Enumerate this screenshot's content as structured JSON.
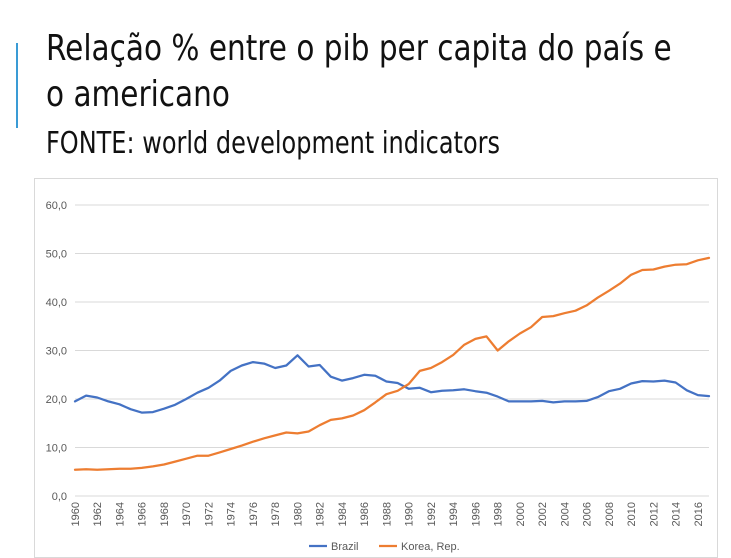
{
  "slide": {
    "title_line1": "Relação % entre o pib per capita do país e",
    "title_line2": "o americano",
    "subtitle": "FONTE: world development indicators"
  },
  "colors": {
    "brazil": "#4472c4",
    "korea": "#ed7d31",
    "grid": "#d9d9d9",
    "accent": "#3a9bd5"
  },
  "chart_data": {
    "type": "line",
    "title": "",
    "xlabel": "",
    "ylabel": "",
    "ylim": [
      0,
      60
    ],
    "yticks": [
      0,
      10,
      20,
      30,
      40,
      50,
      60
    ],
    "ytick_labels": [
      "0,0",
      "10,0",
      "20,0",
      "30,0",
      "40,0",
      "50,0",
      "60,0"
    ],
    "x": [
      1960,
      1961,
      1962,
      1963,
      1964,
      1965,
      1966,
      1967,
      1968,
      1969,
      1970,
      1971,
      1972,
      1973,
      1974,
      1975,
      1976,
      1977,
      1978,
      1979,
      1980,
      1981,
      1982,
      1983,
      1984,
      1985,
      1986,
      1987,
      1988,
      1989,
      1990,
      1991,
      1992,
      1993,
      1994,
      1995,
      1996,
      1997,
      1998,
      1999,
      2000,
      2001,
      2002,
      2003,
      2004,
      2005,
      2006,
      2007,
      2008,
      2009,
      2010,
      2011,
      2012,
      2013,
      2014,
      2015,
      2016,
      2017
    ],
    "xtick_labels": [
      "1960",
      "1962",
      "1964",
      "1966",
      "1968",
      "1970",
      "1972",
      "1974",
      "1976",
      "1978",
      "1980",
      "1982",
      "1984",
      "1986",
      "1988",
      "1990",
      "1992",
      "1994",
      "1996",
      "1998",
      "2000",
      "2002",
      "2004",
      "2006",
      "2008",
      "2010",
      "2012",
      "2014",
      "2016"
    ],
    "grid": true,
    "legend_position": "bottom",
    "series": [
      {
        "name": "Brazil",
        "values": [
          19.5,
          20.7,
          20.3,
          19.5,
          18.9,
          17.9,
          17.2,
          17.3,
          18.0,
          18.8,
          20.0,
          21.3,
          22.3,
          23.8,
          25.8,
          26.9,
          27.6,
          27.3,
          26.4,
          26.9,
          29.0,
          26.7,
          27.0,
          24.6,
          23.8,
          24.3,
          25.0,
          24.8,
          23.6,
          23.3,
          22.1,
          22.3,
          21.4,
          21.7,
          21.8,
          22.0,
          21.6,
          21.3,
          20.5,
          19.5,
          19.5,
          19.5,
          19.6,
          19.3,
          19.5,
          19.5,
          19.6,
          20.4,
          21.6,
          22.1,
          23.2,
          23.7,
          23.6,
          23.8,
          23.4,
          21.8,
          20.8,
          20.6
        ]
      },
      {
        "name": "Korea, Rep.",
        "values": [
          5.4,
          5.5,
          5.4,
          5.5,
          5.6,
          5.6,
          5.8,
          6.1,
          6.5,
          7.1,
          7.7,
          8.3,
          8.3,
          9.0,
          9.7,
          10.4,
          11.2,
          11.9,
          12.5,
          13.1,
          12.9,
          13.3,
          14.6,
          15.7,
          16.0,
          16.6,
          17.7,
          19.3,
          21.0,
          21.7,
          23.1,
          25.8,
          26.4,
          27.6,
          29.1,
          31.2,
          32.4,
          32.9,
          30.0,
          31.9,
          33.5,
          34.8,
          36.9,
          37.1,
          37.7,
          38.2,
          39.3,
          40.9,
          42.3,
          43.8,
          45.6,
          46.6,
          46.7,
          47.3,
          47.7,
          47.8,
          48.6,
          49.1
        ]
      }
    ]
  }
}
